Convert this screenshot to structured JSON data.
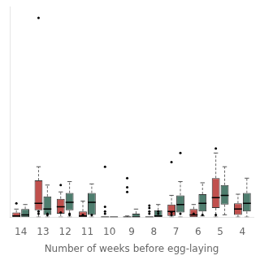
{
  "chart_data": {
    "type": "box",
    "xlabel": "Number of weeks before egg-laying",
    "categories": [
      "14",
      "13",
      "12",
      "11",
      "10",
      "9",
      "8",
      "7",
      "6",
      "5",
      "4"
    ],
    "ylim": [
      0,
      92
    ],
    "grid": false,
    "tick_labels": "x",
    "series": [
      {
        "color": "#c0504d",
        "values": [
          {
            "q1": 0.0,
            "median": 0.5,
            "q3": 2.0,
            "whislo": 0.0,
            "whishi": 3.5,
            "fliers": [
              6.0
            ]
          },
          {
            "q1": 3.0,
            "median": 6.0,
            "q3": 16.0,
            "whislo": 0.0,
            "whishi": 22.0,
            "fliers": [
              1.5,
              2.5,
              87.0
            ]
          },
          {
            "q1": 1.5,
            "median": 4.5,
            "q3": 8.0,
            "whislo": 0.0,
            "whishi": 11.0,
            "fliers": [
              2.0,
              14.0
            ]
          },
          {
            "q1": 0.0,
            "median": 0.5,
            "q3": 2.5,
            "whislo": 0.0,
            "whishi": 7.0,
            "fliers": [
              1.0
            ]
          },
          {
            "q1": 0.0,
            "median": 0.0,
            "q3": 0.0,
            "whislo": 0.0,
            "whishi": 0.0,
            "fliers": [
              1.5,
              2.5,
              4.5,
              22.0
            ]
          },
          {
            "q1": 0.0,
            "median": 0.0,
            "q3": 0.0,
            "whislo": 0.0,
            "whishi": 0.5,
            "fliers": [
              11.0,
              13.0,
              17.0
            ]
          },
          {
            "q1": 0.0,
            "median": 0.0,
            "q3": 0.0,
            "whislo": 0.0,
            "whishi": 0.0,
            "fliers": [
              1.5,
              2.5,
              4.0,
              5.0
            ]
          },
          {
            "q1": 0.5,
            "median": 2.5,
            "q3": 5.5,
            "whislo": 0.0,
            "whishi": 9.5,
            "fliers": [
              1.0,
              2.0,
              24.0
            ]
          },
          {
            "q1": 0.0,
            "median": 1.0,
            "q3": 3.5,
            "whislo": 0.0,
            "whishi": 5.5,
            "fliers": [
              1.5
            ]
          },
          {
            "q1": 4.0,
            "median": 8.5,
            "q3": 17.0,
            "whislo": 0.0,
            "whishi": 28.0,
            "fliers": [
              1.0,
              30.0
            ]
          },
          {
            "q1": 1.0,
            "median": 3.5,
            "q3": 6.0,
            "whislo": 0.0,
            "whishi": 10.0,
            "fliers": []
          }
        ]
      },
      {
        "color": "#4e7d6e",
        "values": [
          {
            "q1": 0.0,
            "median": 1.0,
            "q3": 3.5,
            "whislo": 0.0,
            "whishi": 5.5,
            "fliers": []
          },
          {
            "q1": 1.0,
            "median": 3.5,
            "q3": 9.0,
            "whislo": 0.0,
            "whishi": 14.0,
            "fliers": [
              1.0,
              1.5
            ]
          },
          {
            "q1": 3.0,
            "median": 6.5,
            "q3": 10.5,
            "whislo": 0.0,
            "whishi": 15.5,
            "fliers": [
              1.0,
              1.5
            ]
          },
          {
            "q1": 1.0,
            "median": 6.5,
            "q3": 10.5,
            "whislo": 0.0,
            "whishi": 14.5,
            "fliers": [
              1.0
            ]
          },
          {
            "q1": 0.0,
            "median": 0.0,
            "q3": 0.0,
            "whislo": 0.0,
            "whishi": 0.0,
            "fliers": []
          },
          {
            "q1": 0.0,
            "median": 0.0,
            "q3": 1.5,
            "whislo": 0.0,
            "whishi": 3.5,
            "fliers": []
          },
          {
            "q1": 0.0,
            "median": 0.5,
            "q3": 3.0,
            "whislo": 0.0,
            "whishi": 5.5,
            "fliers": [
              1.5,
              2.5
            ]
          },
          {
            "q1": 2.0,
            "median": 5.5,
            "q3": 9.5,
            "whislo": 0.0,
            "whishi": 15.5,
            "fliers": [
              1.5,
              28.0
            ]
          },
          {
            "q1": 2.5,
            "median": 6.0,
            "q3": 10.0,
            "whislo": 0.5,
            "whishi": 15.0,
            "fliers": [
              1.0
            ]
          },
          {
            "q1": 5.5,
            "median": 9.5,
            "q3": 14.0,
            "whislo": 1.0,
            "whishi": 22.0,
            "fliers": []
          },
          {
            "q1": 2.5,
            "median": 6.0,
            "q3": 10.5,
            "whislo": 0.0,
            "whishi": 17.0,
            "fliers": []
          }
        ]
      }
    ]
  }
}
